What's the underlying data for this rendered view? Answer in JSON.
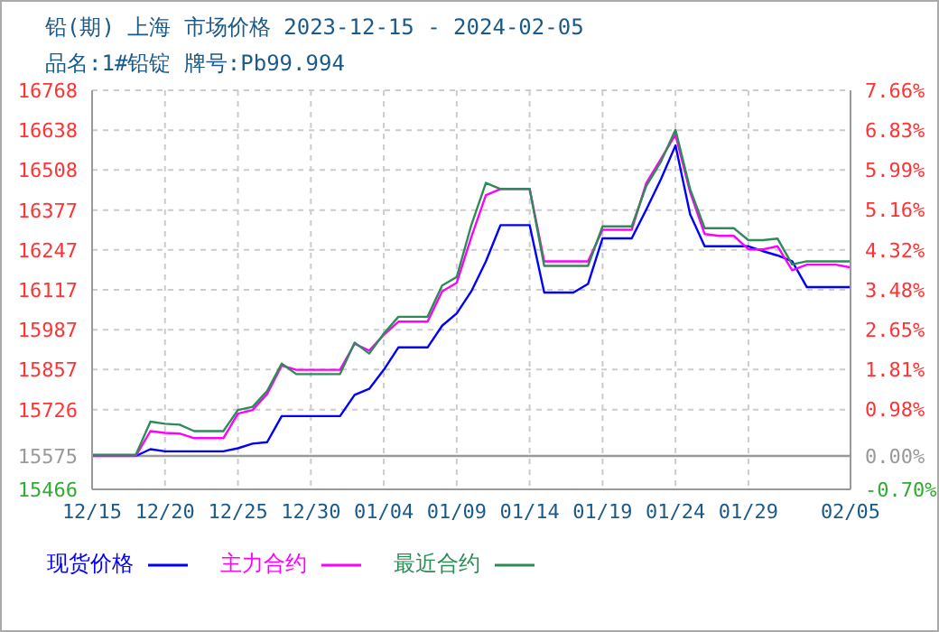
{
  "chart_data": {
    "type": "line",
    "title": "铅(期) 上海 市场价格 2023-12-15 - 2024-02-05",
    "subtitle": "品名:1#铅锭 牌号:Pb99.994",
    "x": [
      "2023-12-15",
      "2023-12-16",
      "2023-12-17",
      "2023-12-18",
      "2023-12-19",
      "2023-12-20",
      "2023-12-21",
      "2023-12-22",
      "2023-12-23",
      "2023-12-24",
      "2023-12-25",
      "2023-12-26",
      "2023-12-27",
      "2023-12-28",
      "2023-12-29",
      "2023-12-30",
      "2023-12-31",
      "2024-01-01",
      "2024-01-02",
      "2024-01-03",
      "2024-01-04",
      "2024-01-05",
      "2024-01-06",
      "2024-01-07",
      "2024-01-08",
      "2024-01-09",
      "2024-01-10",
      "2024-01-11",
      "2024-01-12",
      "2024-01-13",
      "2024-01-14",
      "2024-01-15",
      "2024-01-16",
      "2024-01-17",
      "2024-01-18",
      "2024-01-19",
      "2024-01-20",
      "2024-01-21",
      "2024-01-22",
      "2024-01-23",
      "2024-01-24",
      "2024-01-25",
      "2024-01-26",
      "2024-01-27",
      "2024-01-28",
      "2024-01-29",
      "2024-01-30",
      "2024-01-31",
      "2024-02-01",
      "2024-02-02",
      "2024-02-03",
      "2024-02-04",
      "2024-02-05"
    ],
    "series": [
      {
        "name": "现货价格",
        "color": "#0000ff",
        "values": [
          null,
          null,
          null,
          15575,
          15597,
          15590,
          15590,
          15590,
          15590,
          15590,
          15600,
          15615,
          15620,
          15705,
          15705,
          15705,
          15705,
          15705,
          15774,
          15794,
          15856,
          15929,
          15929,
          15929,
          16000,
          16040,
          16112,
          16210,
          16328,
          16328,
          16328,
          16108,
          16108,
          16108,
          16136,
          16285,
          16285,
          16285,
          16379,
          16478,
          16588,
          16364,
          16259,
          16259,
          16259,
          16259,
          16243,
          16229,
          16210,
          16126,
          16126,
          16126,
          16126
        ]
      },
      {
        "name": "主力合约",
        "color": "#ff00ff",
        "values": [
          15575,
          15575,
          15575,
          15575,
          15656,
          15650,
          15648,
          15633,
          15633,
          15633,
          15713,
          15725,
          15777,
          15870,
          15856,
          15856,
          15856,
          15856,
          15941,
          15919,
          15970,
          16013,
          16013,
          16013,
          16112,
          16140,
          16289,
          16426,
          16446,
          16446,
          16446,
          16210,
          16210,
          16210,
          16210,
          16313,
          16313,
          16313,
          16466,
          16544,
          16623,
          16436,
          16299,
          16293,
          16293,
          16249,
          16249,
          16259,
          16181,
          16199,
          16199,
          16199,
          16190
        ]
      },
      {
        "name": "最近合约",
        "color": "#2e8b57",
        "values": [
          15579,
          15579,
          15579,
          15579,
          15687,
          15680,
          15677,
          15656,
          15656,
          15656,
          15725,
          15735,
          15787,
          15876,
          15842,
          15842,
          15842,
          15842,
          15945,
          15909,
          15974,
          16029,
          16029,
          16029,
          16131,
          16159,
          16328,
          16466,
          16446,
          16446,
          16446,
          16195,
          16195,
          16195,
          16195,
          16324,
          16324,
          16324,
          16456,
          16535,
          16639,
          16446,
          16318,
          16318,
          16318,
          16279,
          16279,
          16284,
          16200,
          16210,
          16210,
          16210,
          16210
        ]
      }
    ],
    "xlim": [
      "2023-12-15",
      "2024-02-05"
    ],
    "xticks": [
      {
        "value": "2023-12-15",
        "label": "12/15"
      },
      {
        "value": "2023-12-20",
        "label": "12/20"
      },
      {
        "value": "2023-12-25",
        "label": "12/25"
      },
      {
        "value": "2023-12-30",
        "label": "12/30"
      },
      {
        "value": "2024-01-04",
        "label": "01/04"
      },
      {
        "value": "2024-01-09",
        "label": "01/09"
      },
      {
        "value": "2024-01-14",
        "label": "01/14"
      },
      {
        "value": "2024-01-19",
        "label": "01/19"
      },
      {
        "value": "2024-01-24",
        "label": "01/24"
      },
      {
        "value": "2024-01-29",
        "label": "01/29"
      },
      {
        "value": "2024-02-05",
        "label": "02/05"
      }
    ],
    "ylim": [
      15466,
      16768
    ],
    "yticks": [
      15466,
      15575,
      15726,
      15857,
      15987,
      16117,
      16247,
      16377,
      16508,
      16638,
      16768
    ],
    "y2lim": [
      -0.7,
      7.66
    ],
    "y2ticks": [
      {
        "value": -0.7,
        "label": "-0.70%"
      },
      {
        "value": 0,
        "label": "0.00%"
      },
      {
        "value": 0.98,
        "label": "0.98%"
      },
      {
        "value": 1.81,
        "label": "1.81%"
      },
      {
        "value": 2.65,
        "label": "2.65%"
      },
      {
        "value": 3.48,
        "label": "3.48%"
      },
      {
        "value": 4.32,
        "label": "4.32%"
      },
      {
        "value": 5.16,
        "label": "5.16%"
      },
      {
        "value": 5.99,
        "label": "5.99%"
      },
      {
        "value": 6.83,
        "label": "6.83%"
      },
      {
        "value": 7.66,
        "label": "7.66%"
      }
    ],
    "ref_lines": [
      {
        "axis": "y",
        "value": 15575,
        "color": "#999999"
      }
    ],
    "grid": true,
    "legend": "bottom",
    "marker": "none",
    "line_style": "solid"
  }
}
